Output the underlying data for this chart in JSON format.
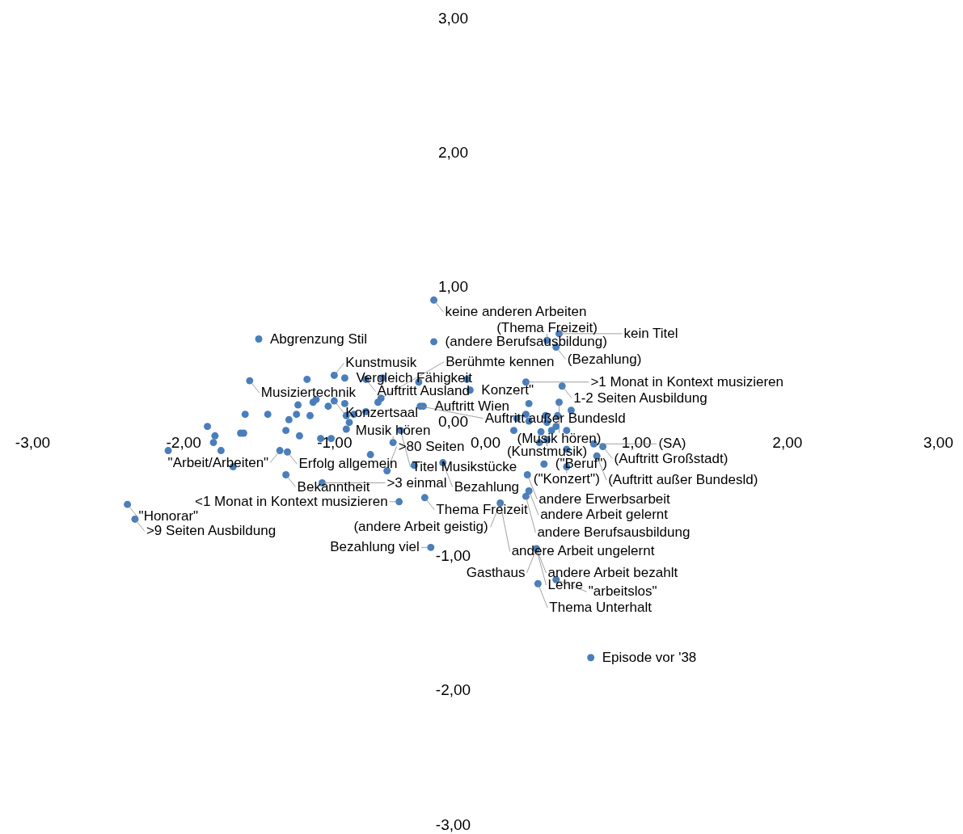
{
  "chart_data": {
    "type": "scatter",
    "marker": "circle",
    "grid": false,
    "xlim": [
      -3,
      3
    ],
    "ylim": [
      -3,
      3
    ],
    "xticks": [
      {
        "value": -3,
        "label": "-3,00"
      },
      {
        "value": -2,
        "label": "-2,00"
      },
      {
        "value": -1,
        "label": "-1,00"
      },
      {
        "value": 0,
        "label": "0,00"
      },
      {
        "value": 1,
        "label": "1,00"
      },
      {
        "value": 2,
        "label": "2,00"
      },
      {
        "value": 3,
        "label": "3,00"
      }
    ],
    "yticks": [
      {
        "value": -3,
        "label": "-3,00"
      },
      {
        "value": -2,
        "label": "-2,00"
      },
      {
        "value": -1,
        "label": "-1,00"
      },
      {
        "value": 0,
        "label": "0,00"
      },
      {
        "value": 1,
        "label": "1,00"
      },
      {
        "value": 2,
        "label": "2,00"
      },
      {
        "value": 3,
        "label": "3,00"
      }
    ],
    "series": [
      {
        "color": "#4a7ebb",
        "x": [
          -0.34,
          -1.5,
          -0.34,
          -1.56,
          -1.18,
          -1.0,
          -0.93,
          -0.79,
          -0.68,
          -0.44,
          -0.71,
          -0.69,
          -0.43,
          -0.41,
          -1.24,
          -1.14,
          -1.12,
          -1.0,
          -1.04,
          -0.93,
          -0.79,
          -0.87,
          -0.92,
          -0.9,
          -0.92,
          -1.59,
          -1.44,
          -1.25,
          -1.16,
          -1.3,
          -1.84,
          -1.79,
          -1.62,
          -1.6,
          -1.32,
          -1.23,
          -1.09,
          -1.02,
          -0.56,
          -0.61,
          -1.8,
          -2.1,
          -1.75,
          -1.36,
          -1.31,
          -1.67,
          -1.32,
          -1.08,
          -0.76,
          -0.65,
          -0.47,
          -0.28,
          -0.57,
          -0.4,
          -2.37,
          -2.32,
          0.49,
          0.41,
          0.47,
          0.27,
          0.51,
          -0.12,
          -0.1,
          0.49,
          0.57,
          0.29,
          0.21,
          0.27,
          0.29,
          0.4,
          0.48,
          0.41,
          0.47,
          0.44,
          0.54,
          0.37,
          0.19,
          0.36,
          0.41,
          0.54,
          0.72,
          0.78,
          0.74,
          0.39,
          0.54,
          0.28,
          0.29,
          0.1,
          -0.36,
          0.34,
          0.47,
          0.35,
          0.7,
          0.27
        ],
        "values": [
          0.9,
          0.61,
          0.59,
          0.3,
          0.31,
          0.34,
          0.32,
          0.31,
          0.32,
          0.29,
          0.14,
          0.17,
          0.11,
          0.11,
          0.12,
          0.14,
          0.16,
          0.15,
          0.11,
          0.13,
          0.07,
          0.05,
          0.04,
          -0.01,
          -0.06,
          0.05,
          0.05,
          0.05,
          0.04,
          0.01,
          -0.04,
          -0.11,
          -0.09,
          -0.09,
          -0.07,
          -0.11,
          -0.13,
          -0.13,
          -0.07,
          -0.16,
          -0.16,
          -0.22,
          -0.22,
          -0.22,
          -0.23,
          -0.34,
          -0.4,
          -0.46,
          -0.25,
          -0.37,
          -0.33,
          -0.31,
          -0.6,
          -0.57,
          -0.62,
          -0.73,
          0.65,
          0.6,
          0.55,
          0.29,
          0.26,
          0.31,
          0.23,
          0.14,
          0.08,
          0.13,
          0.02,
          0.05,
          0.0,
          0.04,
          0.04,
          -0.01,
          -0.04,
          -0.07,
          -0.07,
          -0.08,
          -0.07,
          -0.16,
          -0.14,
          -0.21,
          -0.17,
          -0.19,
          -0.26,
          -0.32,
          -0.34,
          -0.4,
          -0.52,
          -0.61,
          -0.94,
          -0.95,
          -1.18,
          -1.21,
          -1.76,
          -0.56
        ]
      }
    ],
    "annotations": [
      {
        "text": "keine anderen Arbeiten",
        "x": -0.34,
        "y": 0.9
      },
      {
        "text": "Abgrenzung Stil",
        "x": -1.5,
        "y": 0.61
      },
      {
        "text": "(andere Berufsausbildung)",
        "x": -0.34,
        "y": 0.59
      },
      {
        "text": "kein Titel",
        "x": 0.49,
        "y": 0.65
      },
      {
        "text": "(Thema Freizeit)",
        "x": 0.41,
        "y": 0.6
      },
      {
        "text": "(Bezahlung)",
        "x": 0.47,
        "y": 0.55
      },
      {
        "text": "Kunstmusik",
        "x": -1.0,
        "y": 0.34
      },
      {
        "text": "Vergleich Fähigkeit",
        "x": -0.93,
        "y": 0.32
      },
      {
        "text": "Musiziertechnik",
        "x": -1.56,
        "y": 0.3
      },
      {
        "text": "Auftritt  Ausland",
        "x": -0.79,
        "y": 0.31
      },
      {
        "text": "Konzert\"",
        "x": -0.1,
        "y": 0.23
      },
      {
        "text": ">1 Monat in Kontext musizieren",
        "x": 0.27,
        "y": 0.29
      },
      {
        "text": "1-2 Seiten Ausbildung",
        "x": 0.51,
        "y": 0.26
      },
      {
        "text": "Konzertsaal",
        "x": -1.0,
        "y": 0.15
      },
      {
        "text": "Berühmte kennen",
        "x": -0.69,
        "y": 0.17
      },
      {
        "text": "Auftritt außer Bundesld",
        "x": -0.43,
        "y": 0.11
      },
      {
        "text": "(Musik hören)",
        "x": 0.49,
        "y": 0.14
      },
      {
        "text": "Auftritt Wien",
        "x": -0.41,
        "y": 0.11
      },
      {
        "text": "Titel Musikstücke",
        "x": -0.56,
        "y": -0.07
      },
      {
        "text": "(Kunstmusik)",
        "x": 0.41,
        "y": -0.14
      },
      {
        "text": "(SA)",
        "x": 0.72,
        "y": -0.17
      },
      {
        "text": "Musik hören",
        "x": -0.61,
        "y": -0.16
      },
      {
        "text": "Erfolg allgemein",
        "x": -1.31,
        "y": -0.23
      },
      {
        "text": "(Auftritt Großstadt)",
        "x": 0.78,
        "y": -0.19
      },
      {
        "text": "\"Arbeit/Arbeiten\"",
        "x": -1.36,
        "y": -0.22
      },
      {
        "text": "Bezahlung",
        "x": -0.28,
        "y": -0.31
      },
      {
        "text": "(\"Beruf\")",
        "x": 0.39,
        "y": -0.32
      },
      {
        "text": "(Auftritt außer Bundesld)",
        "x": 0.74,
        "y": -0.26
      },
      {
        "text": "(\"Konzert\")",
        "x": 0.54,
        "y": -0.34
      },
      {
        "text": "Bekanntheit",
        "x": -1.32,
        "y": -0.4
      },
      {
        "text": ">80 Seiten",
        "x": -0.65,
        "y": -0.37
      },
      {
        "text": "andere Erwerbsarbeit",
        "x": 0.28,
        "y": -0.4
      },
      {
        "text": ">3 einmal",
        "x": -1.08,
        "y": -0.46
      },
      {
        "text": "andere Arbeit gelernt",
        "x": 0.29,
        "y": -0.52
      },
      {
        "text": "Thema Freizeit",
        "x": -0.4,
        "y": -0.57
      },
      {
        "text": "andere Berufsausbildung",
        "x": 0.27,
        "y": -0.56
      },
      {
        "text": "<1 Monat in Kontext musizieren",
        "x": -0.57,
        "y": -0.6
      },
      {
        "text": "(andere Arbeit geistig)",
        "x": 0.1,
        "y": -0.61
      },
      {
        "text": "andere Arbeit ungelernt",
        "x": 0.1,
        "y": -0.61
      },
      {
        "text": "andere Arbeit bezahlt",
        "x": 0.34,
        "y": -0.95
      },
      {
        "text": "\"Honorar\"",
        "x": -2.37,
        "y": -0.62
      },
      {
        "text": ">9 Seiten Ausbildung",
        "x": -2.32,
        "y": -0.73
      },
      {
        "text": "Bezahlung viel",
        "x": -0.36,
        "y": -0.94
      },
      {
        "text": "Lehre",
        "x": 0.34,
        "y": -0.95
      },
      {
        "text": "Gasthaus",
        "x": 0.34,
        "y": -0.95
      },
      {
        "text": "\"arbeitslos\"",
        "x": 0.47,
        "y": -1.18
      },
      {
        "text": "Thema Unterhalt",
        "x": 0.35,
        "y": -1.21
      },
      {
        "text": "Episode vor '38",
        "x": 0.7,
        "y": -1.76
      }
    ]
  }
}
